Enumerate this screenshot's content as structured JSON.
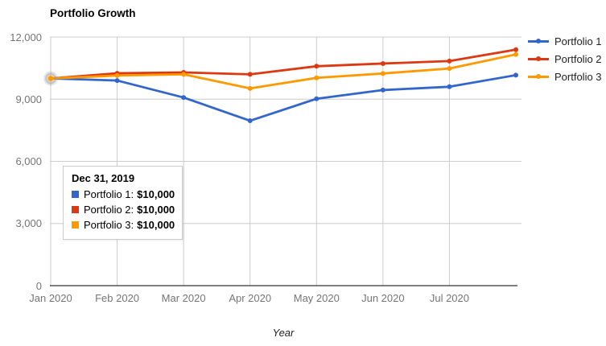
{
  "chart": {
    "title": "Portfolio Growth",
    "x_axis_title": "Year"
  },
  "chart_data": {
    "type": "line",
    "title": "Portfolio Growth",
    "xlabel": "Year",
    "ylabel": "",
    "ylim": [
      0,
      12000
    ],
    "y_ticks": [
      0,
      3000,
      6000,
      9000,
      12000
    ],
    "y_tick_labels": [
      "0",
      "3,000",
      "6,000",
      "9,000",
      "12,000"
    ],
    "x_tick_labels": [
      "Jan 2020",
      "Feb 2020",
      "Mar 2020",
      "Apr 2020",
      "May 2020",
      "Jun 2020",
      "Jul 2020"
    ],
    "grid": true,
    "legend_position": "right",
    "series": [
      {
        "name": "Portfolio 1",
        "color": "#3366CC",
        "values": [
          10000,
          9900,
          9080,
          7960,
          9020,
          9440,
          9600,
          10160
        ]
      },
      {
        "name": "Portfolio 2",
        "color": "#DC3912",
        "values": [
          10000,
          10250,
          10290,
          10200,
          10590,
          10720,
          10840,
          11390
        ]
      },
      {
        "name": "Portfolio 3",
        "color": "#FF9900",
        "values": [
          10000,
          10140,
          10200,
          9520,
          10030,
          10240,
          10480,
          11160
        ]
      }
    ],
    "highlighted_point": {
      "series_index": 2,
      "point_index": 0
    }
  },
  "legend": {
    "items": [
      {
        "label": "Portfolio 1",
        "color": "#3366CC"
      },
      {
        "label": "Portfolio 2",
        "color": "#DC3912"
      },
      {
        "label": "Portfolio 3",
        "color": "#FF9900"
      }
    ]
  },
  "tooltip": {
    "date": "Dec 31, 2019",
    "rows": [
      {
        "label": "Portfolio 1:",
        "value": "$10,000",
        "color": "#3366CC"
      },
      {
        "label": "Portfolio 2:",
        "value": "$10,000",
        "color": "#DC3912"
      },
      {
        "label": "Portfolio 3:",
        "value": "$10,000",
        "color": "#FF9900"
      }
    ]
  },
  "colors": {
    "grid": "#cccccc",
    "baseline": "#333333",
    "axis_text": "#757575",
    "halo": "#999999"
  }
}
